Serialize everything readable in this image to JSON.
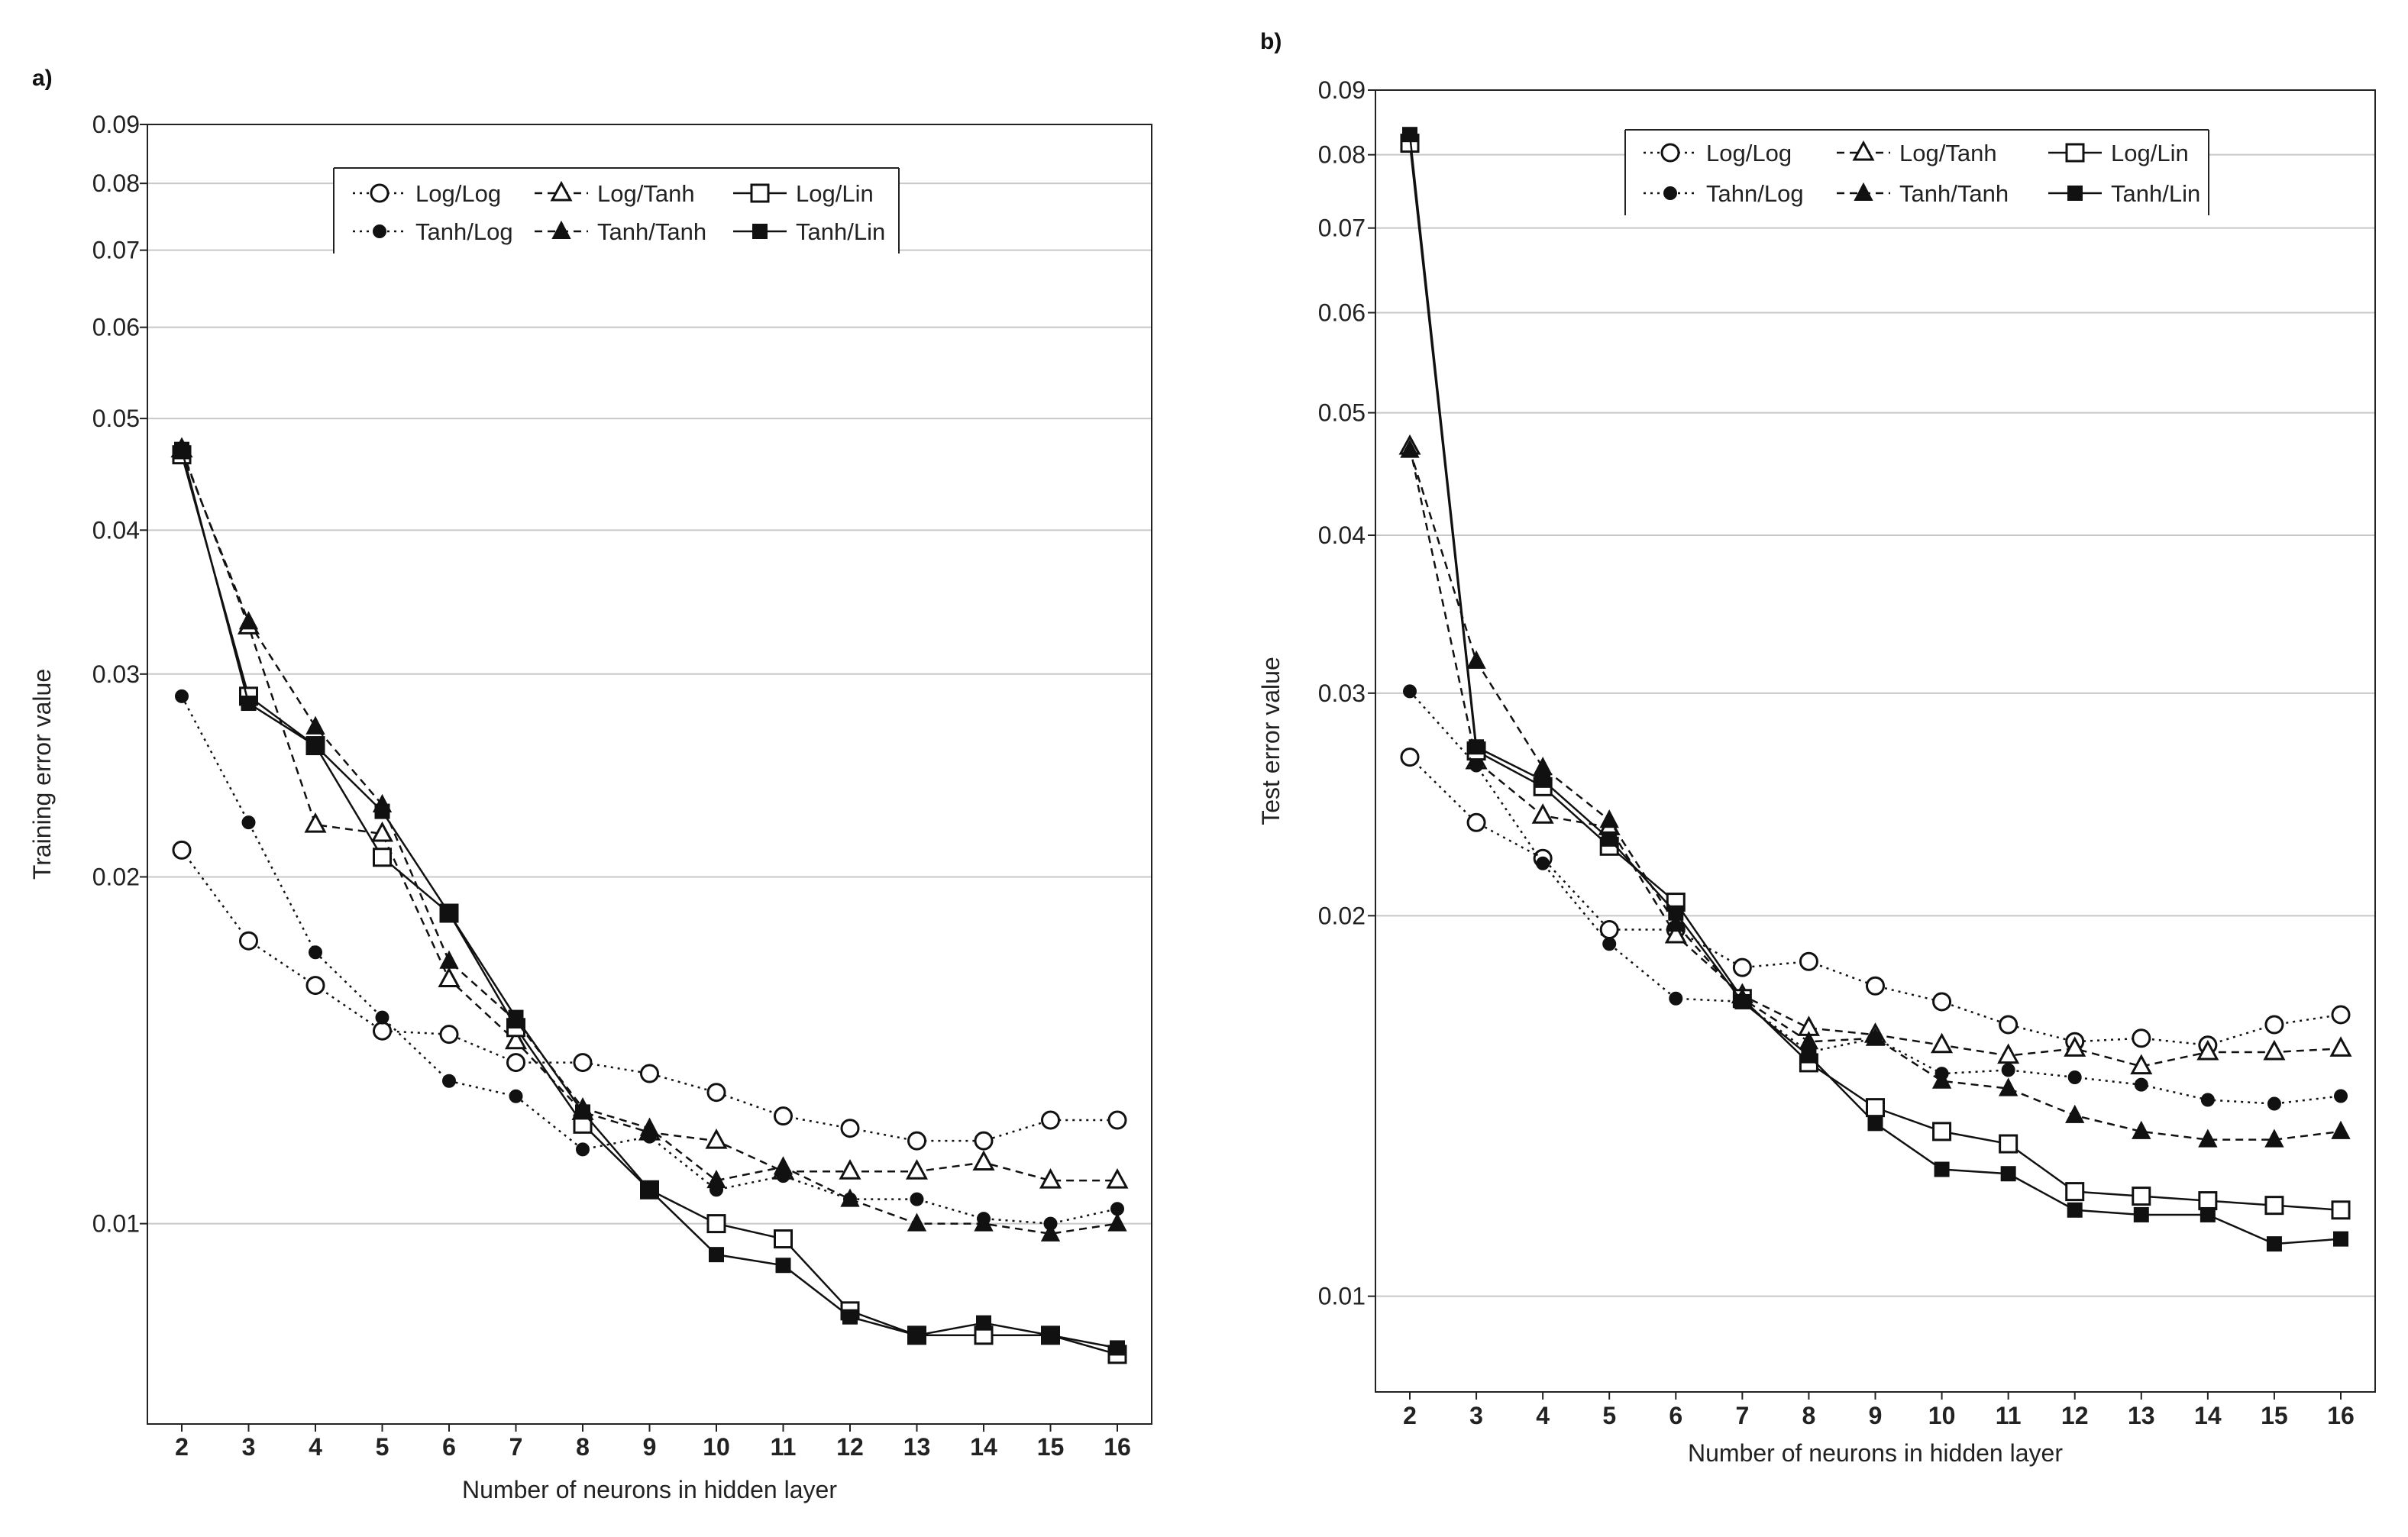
{
  "panels": [
    {
      "id": "a",
      "label": "a)"
    },
    {
      "id": "b",
      "label": "b)"
    }
  ],
  "chart_data": [
    {
      "type": "line",
      "id": "a",
      "title": "",
      "xlabel": "Number of neurons in hidden layer",
      "ylabel": "Training error value",
      "yscale": "log",
      "ylim": [
        0.0067,
        0.09
      ],
      "yticks": [
        "0.01",
        "0.02",
        "0.03",
        "0.04",
        "0.05",
        "0.06",
        "0.07",
        "0.08",
        "0.09"
      ],
      "categories": [
        "2",
        "3",
        "4",
        "5",
        "6",
        "7",
        "8",
        "9",
        "10",
        "11",
        "12",
        "13",
        "14",
        "15",
        "16"
      ],
      "legend": "top-center, 3 columns x 2 rows",
      "series": [
        {
          "name": "Log/Log",
          "marker": "circle-open",
          "dash": "dot",
          "values": [
            0.0211,
            0.0176,
            0.0161,
            0.0147,
            0.0146,
            0.0138,
            0.0138,
            0.0135,
            0.013,
            0.0124,
            0.0121,
            0.0118,
            0.0118,
            0.0123,
            0.0123
          ]
        },
        {
          "name": "Log/Tanh",
          "marker": "triangle-open",
          "dash": "dash",
          "values": [
            0.047,
            0.033,
            0.0222,
            0.0218,
            0.0163,
            0.0144,
            0.0125,
            0.012,
            0.0118,
            0.0111,
            0.0111,
            0.0111,
            0.0113,
            0.0109,
            0.0109
          ]
        },
        {
          "name": "Log/Lin",
          "marker": "square-open",
          "dash": "solid",
          "values": [
            0.0465,
            0.0287,
            0.026,
            0.0208,
            0.0186,
            0.0148,
            0.0122,
            0.0107,
            0.01,
            0.0097,
            0.0084,
            0.008,
            0.008,
            0.008,
            0.0077
          ]
        },
        {
          "name": "Tanh/Log",
          "marker": "circle-filled",
          "dash": "dot",
          "values": [
            0.0287,
            0.0223,
            0.0172,
            0.0151,
            0.0133,
            0.0129,
            0.0116,
            0.0119,
            0.0107,
            0.011,
            0.0105,
            0.0105,
            0.0101,
            0.01,
            0.0103
          ]
        },
        {
          "name": "Tanh/Tanh",
          "marker": "triangle-filled",
          "dash": "dash",
          "values": [
            0.0468,
            0.0333,
            0.027,
            0.0231,
            0.0169,
            0.015,
            0.0126,
            0.0121,
            0.0109,
            0.0112,
            0.0105,
            0.01,
            0.01,
            0.0098,
            0.01
          ]
        },
        {
          "name": "Tanh/Lin",
          "marker": "square-filled",
          "dash": "solid",
          "values": [
            0.047,
            0.0283,
            0.026,
            0.0228,
            0.0186,
            0.0151,
            0.0125,
            0.0107,
            0.0094,
            0.0092,
            0.0083,
            0.008,
            0.0082,
            0.008,
            0.0078
          ]
        }
      ]
    },
    {
      "type": "line",
      "id": "b",
      "title": "",
      "xlabel": "Number of neurons in hidden layer",
      "ylabel": "Test error value",
      "yscale": "log",
      "ylim": [
        0.0084,
        0.09
      ],
      "yticks": [
        "0.01",
        "0.02",
        "0.03",
        "0.04",
        "0.05",
        "0.06",
        "0.07",
        "0.08",
        "0.09"
      ],
      "categories": [
        "2",
        "3",
        "4",
        "5",
        "6",
        "7",
        "8",
        "9",
        "10",
        "11",
        "12",
        "13",
        "14",
        "15",
        "16"
      ],
      "legend": "top-center, 3 columns x 2 rows",
      "series": [
        {
          "name": "Log/Log",
          "marker": "circle-open",
          "dash": "dot",
          "values": [
            0.0267,
            0.0237,
            0.0222,
            0.0195,
            0.0195,
            0.0182,
            0.0184,
            0.0176,
            0.0171,
            0.0164,
            0.0159,
            0.016,
            0.0158,
            0.0164,
            0.0167
          ]
        },
        {
          "name": "Log/Tanh",
          "marker": "triangle-open",
          "dash": "dash",
          "values": [
            0.047,
            0.0265,
            0.024,
            0.0235,
            0.0193,
            0.0173,
            0.0163,
            0.0161,
            0.0158,
            0.0155,
            0.0157,
            0.0152,
            0.0156,
            0.0156,
            0.0157
          ]
        },
        {
          "name": "Log/Lin",
          "marker": "square-open",
          "dash": "solid",
          "values": [
            0.0817,
            0.027,
            0.0253,
            0.0227,
            0.0205,
            0.0172,
            0.0153,
            0.0141,
            0.0135,
            0.0132,
            0.0121,
            0.012,
            0.0119,
            0.0118,
            0.0117
          ]
        },
        {
          "name": "Tahn/Log",
          "marker": "circle-filled",
          "dash": "dot",
          "values": [
            0.0301,
            0.0263,
            0.022,
            0.019,
            0.0172,
            0.0171,
            0.0156,
            0.016,
            0.015,
            0.0151,
            0.0149,
            0.0147,
            0.0143,
            0.0142,
            0.0144
          ]
        },
        {
          "name": "Tanh/Tanh",
          "marker": "triangle-filled",
          "dash": "dash",
          "values": [
            0.0467,
            0.0318,
            0.0262,
            0.0238,
            0.0197,
            0.0172,
            0.0159,
            0.016,
            0.0148,
            0.0146,
            0.0139,
            0.0135,
            0.0133,
            0.0133,
            0.0135
          ]
        },
        {
          "name": "Tanh/Lin",
          "marker": "square-filled",
          "dash": "solid",
          "values": [
            0.083,
            0.0272,
            0.0256,
            0.023,
            0.0201,
            0.0171,
            0.0155,
            0.0137,
            0.0126,
            0.0125,
            0.0117,
            0.0116,
            0.0116,
            0.011,
            0.0111
          ]
        }
      ]
    }
  ]
}
